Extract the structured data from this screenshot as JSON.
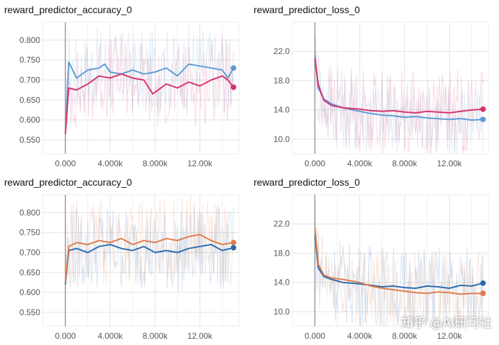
{
  "chart_data": [
    {
      "type": "line",
      "title": "reward_predictor_accuracy_0",
      "xlabel": "",
      "ylabel": "",
      "x_ticks": [
        "0.000",
        "4.000k",
        "8.000k",
        "12.00k"
      ],
      "y_ticks": [
        "0.550",
        "0.600",
        "0.650",
        "0.700",
        "0.750",
        "0.800"
      ],
      "xlim": [
        -2000,
        15500
      ],
      "ylim": [
        0.515,
        0.845
      ],
      "grid": true,
      "series": [
        {
          "color": "#5b9bd5",
          "x": [
            0,
            300,
            1000,
            2000,
            3000,
            3500,
            4000,
            5000,
            6000,
            7000,
            8000,
            9000,
            10000,
            11000,
            12000,
            13000,
            14000,
            14500,
            15000
          ],
          "y": [
            0.565,
            0.745,
            0.705,
            0.725,
            0.73,
            0.74,
            0.72,
            0.715,
            0.725,
            0.715,
            0.72,
            0.73,
            0.71,
            0.74,
            0.735,
            0.73,
            0.725,
            0.705,
            0.73
          ]
        },
        {
          "color": "#d6336c",
          "x": [
            0,
            300,
            1000,
            2000,
            3000,
            4000,
            5000,
            6000,
            7000,
            7800,
            9000,
            10000,
            11000,
            12000,
            13000,
            14000,
            14500,
            15000
          ],
          "y": [
            0.565,
            0.68,
            0.675,
            0.69,
            0.71,
            0.705,
            0.715,
            0.705,
            0.7,
            0.665,
            0.69,
            0.68,
            0.695,
            0.685,
            0.7,
            0.71,
            0.7,
            0.682
          ]
        }
      ]
    },
    {
      "type": "line",
      "title": "reward_predictor_loss_0",
      "xlabel": "",
      "ylabel": "",
      "x_ticks": [
        "0.000",
        "4.000k",
        "8.000k",
        "12.00k"
      ],
      "y_ticks": [
        "10.0",
        "14.0",
        "18.0",
        "22.0"
      ],
      "xlim": [
        -2000,
        15500
      ],
      "ylim": [
        8.0,
        26.0
      ],
      "grid": true,
      "series": [
        {
          "color": "#5b9bd5",
          "x": [
            0,
            300,
            800,
            1500,
            2500,
            4000,
            5000,
            6000,
            7000,
            8000,
            9000,
            10000,
            11000,
            12000,
            13000,
            14000,
            15000
          ],
          "y": [
            21.5,
            17.0,
            15.5,
            14.8,
            14.3,
            13.8,
            13.5,
            13.3,
            13.2,
            13.0,
            13.1,
            12.9,
            12.8,
            12.7,
            12.8,
            12.6,
            12.7
          ]
        },
        {
          "color": "#d6336c",
          "x": [
            0,
            300,
            800,
            1500,
            2500,
            4000,
            5000,
            6000,
            7000,
            8000,
            9000,
            10000,
            11000,
            12000,
            13000,
            14000,
            15000
          ],
          "y": [
            21.0,
            17.5,
            15.3,
            14.6,
            14.3,
            14.1,
            13.9,
            13.8,
            13.9,
            13.7,
            13.6,
            13.8,
            13.7,
            13.6,
            13.8,
            14.0,
            14.1
          ]
        }
      ]
    },
    {
      "type": "line",
      "title": "reward_predictor_accuracy_0",
      "xlabel": "",
      "ylabel": "",
      "x_ticks": [
        "0.000",
        "4.000k",
        "8.000k",
        "12.00k"
      ],
      "y_ticks": [
        "0.550",
        "0.600",
        "0.650",
        "0.700",
        "0.750",
        "0.800"
      ],
      "xlim": [
        -2000,
        15500
      ],
      "ylim": [
        0.515,
        0.845
      ],
      "grid": true,
      "series": [
        {
          "color": "#2b6cb0",
          "x": [
            0,
            300,
            1000,
            2000,
            3000,
            4000,
            5000,
            6000,
            7000,
            8000,
            9000,
            10000,
            11000,
            12000,
            13000,
            14000,
            15000
          ],
          "y": [
            0.62,
            0.705,
            0.71,
            0.7,
            0.715,
            0.72,
            0.71,
            0.705,
            0.715,
            0.7,
            0.705,
            0.7,
            0.71,
            0.715,
            0.72,
            0.705,
            0.712
          ]
        },
        {
          "color": "#e07b4a",
          "x": [
            0,
            300,
            1000,
            2000,
            3000,
            4000,
            5000,
            6000,
            7000,
            8000,
            9000,
            10000,
            11000,
            12000,
            13000,
            14000,
            15000
          ],
          "y": [
            0.625,
            0.715,
            0.725,
            0.72,
            0.73,
            0.725,
            0.735,
            0.72,
            0.73,
            0.725,
            0.735,
            0.73,
            0.74,
            0.745,
            0.73,
            0.72,
            0.725
          ]
        }
      ]
    },
    {
      "type": "line",
      "title": "reward_predictor_loss_0",
      "xlabel": "",
      "ylabel": "",
      "x_ticks": [
        "0.000",
        "4.000k",
        "8.000k",
        "12.00k"
      ],
      "y_ticks": [
        "10.0",
        "14.0",
        "18.0",
        "22.0"
      ],
      "xlim": [
        -2000,
        15500
      ],
      "ylim": [
        8.0,
        26.0
      ],
      "grid": true,
      "series": [
        {
          "color": "#2b6cb0",
          "x": [
            0,
            300,
            800,
            1500,
            2500,
            4000,
            5000,
            6000,
            7000,
            8000,
            9000,
            10000,
            11000,
            12000,
            13000,
            14000,
            15000
          ],
          "y": [
            20.5,
            16.0,
            14.8,
            14.4,
            14.0,
            13.8,
            13.6,
            13.4,
            13.5,
            13.3,
            13.2,
            13.5,
            13.4,
            13.2,
            13.6,
            13.5,
            13.9
          ]
        },
        {
          "color": "#e07b4a",
          "x": [
            0,
            300,
            800,
            1500,
            2500,
            4000,
            5000,
            6000,
            7000,
            8000,
            9000,
            10000,
            11000,
            12000,
            13000,
            14000,
            15000
          ],
          "y": [
            21.5,
            16.5,
            15.0,
            14.6,
            14.4,
            14.0,
            13.5,
            13.2,
            13.0,
            12.8,
            12.6,
            12.5,
            12.7,
            12.6,
            12.4,
            12.5,
            12.5
          ]
        }
      ]
    }
  ],
  "watermark": "知乎 @AI研习社"
}
